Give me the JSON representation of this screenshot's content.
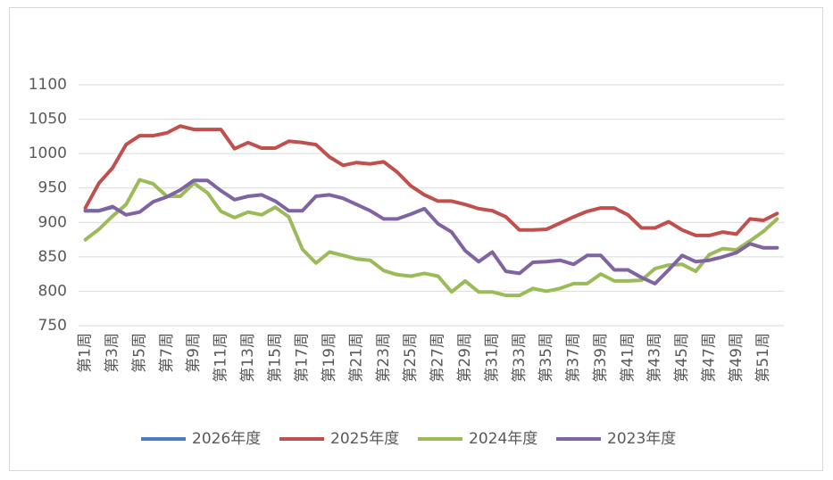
{
  "chart_data": {
    "type": "line",
    "categories": [
      "第1周",
      null,
      "第3周",
      null,
      "第5周",
      null,
      "第7周",
      null,
      "第9周",
      null,
      "第11周",
      null,
      "第13周",
      null,
      "第15周",
      null,
      "第17周",
      null,
      "第19周",
      null,
      "第21周",
      null,
      "第23周",
      null,
      "第25周",
      null,
      "第27周",
      null,
      "第29周",
      null,
      "第31周",
      null,
      "第33周",
      null,
      "第35周",
      null,
      "第37周",
      null,
      "第39周",
      null,
      "第41周",
      null,
      "第43周",
      null,
      "第45周",
      null,
      "第47周",
      null,
      "第49周",
      null,
      "第51周",
      null
    ],
    "series": [
      {
        "name": "2026年度",
        "color": "#4a7ebb",
        "values": [
          917,
          917,
          922,
          null,
          null,
          null,
          null,
          null,
          null,
          null,
          null,
          null,
          null,
          null,
          null,
          null,
          null,
          null,
          null,
          null,
          null,
          null,
          null,
          null,
          null,
          null,
          null,
          null,
          null,
          null,
          null,
          null,
          null,
          null,
          null,
          null,
          null,
          null,
          null,
          null,
          null,
          null,
          null,
          null,
          null,
          null,
          null,
          null,
          null,
          null,
          null,
          null
        ]
      },
      {
        "name": "2025年度",
        "color": "#c0504d",
        "values": [
          921,
          957,
          979,
          1013,
          1026,
          1026,
          1030,
          1040,
          1035,
          1035,
          1035,
          1007,
          1016,
          1008,
          1008,
          1018,
          1016,
          1013,
          995,
          983,
          987,
          985,
          988,
          973,
          953,
          940,
          931,
          931,
          926,
          920,
          917,
          908,
          889,
          889,
          890,
          899,
          908,
          916,
          921,
          921,
          911,
          892,
          892,
          901,
          889,
          881,
          881,
          886,
          883,
          905,
          903,
          913
        ]
      },
      {
        "name": "2024年度",
        "color": "#9bbb59",
        "values": [
          875,
          890,
          909,
          926,
          962,
          956,
          938,
          938,
          957,
          943,
          916,
          907,
          915,
          911,
          922,
          908,
          861,
          841,
          857,
          852,
          847,
          845,
          830,
          824,
          822,
          826,
          822,
          799,
          815,
          799,
          799,
          794,
          794,
          804,
          800,
          804,
          811,
          811,
          825,
          815,
          815,
          816,
          833,
          838,
          839,
          829,
          853,
          862,
          860,
          873,
          887,
          905
        ]
      },
      {
        "name": "2023年度",
        "color": "#8064a2",
        "values": [
          917,
          917,
          923,
          911,
          915,
          930,
          937,
          947,
          961,
          961,
          946,
          933,
          938,
          940,
          931,
          917,
          917,
          938,
          940,
          935,
          926,
          917,
          905,
          905,
          912,
          920,
          898,
          886,
          859,
          843,
          857,
          829,
          826,
          842,
          843,
          845,
          839,
          852,
          852,
          831,
          831,
          820,
          811,
          831,
          852,
          843,
          845,
          850,
          856,
          869,
          863,
          863
        ]
      }
    ],
    "ylim": [
      750,
      1100
    ],
    "yticks": [
      750,
      800,
      850,
      900,
      950,
      1000,
      1050,
      1100
    ],
    "grid": true,
    "legend": "bottom"
  }
}
